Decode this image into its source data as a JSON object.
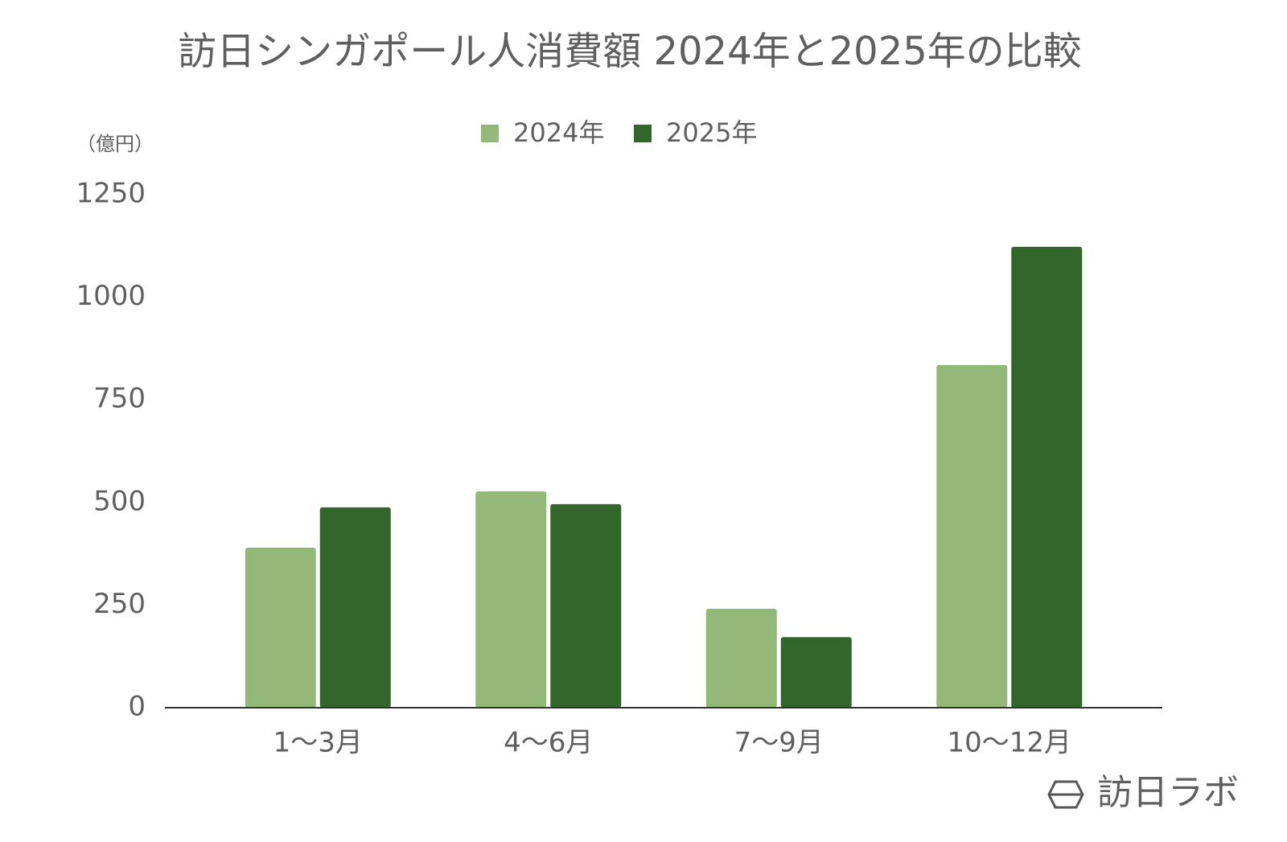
{
  "chart_data": {
    "type": "bar",
    "title": "訪日シンガポール人消費額 2024年と2025年の比較",
    "y_label": "（億円）",
    "categories": [
      "1～3月",
      "4～6月",
      "7～9月",
      "10～12月"
    ],
    "series": [
      {
        "name": "2024年",
        "color": "#93b978",
        "values": [
          390,
          527,
          241,
          835
        ]
      },
      {
        "name": "2025年",
        "color": "#33662b",
        "values": [
          488,
          496,
          172,
          1123
        ]
      }
    ],
    "ylim": [
      0,
      1250
    ],
    "yticks": [
      0,
      250,
      500,
      750,
      1000,
      1250
    ],
    "grid": false,
    "legend": "top",
    "watermark": "訪日ラボ"
  }
}
